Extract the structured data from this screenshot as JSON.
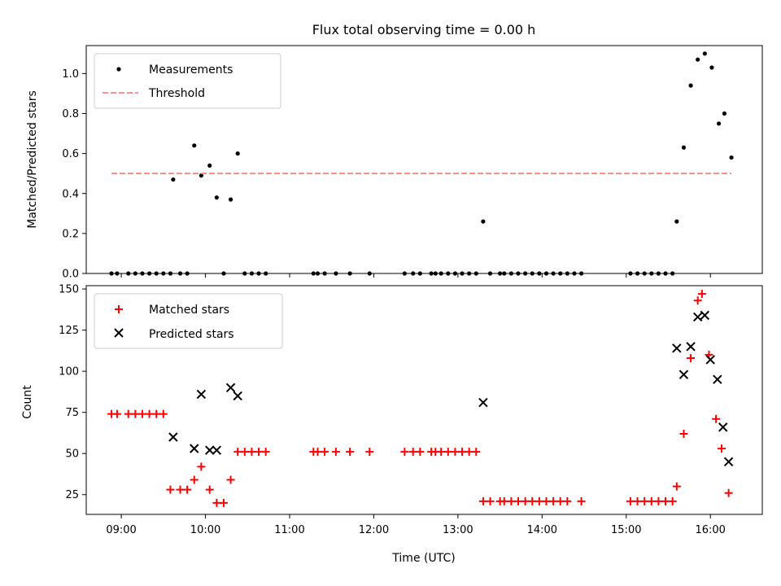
{
  "title": "Flux total observing time = 0.00 h",
  "xlabel": "Time (UTC)",
  "x_ticks": [
    "09:00",
    "10:00",
    "11:00",
    "12:00",
    "13:00",
    "14:00",
    "15:00",
    "16:00"
  ],
  "chart_data": [
    {
      "type": "scatter",
      "ylabel": "Matched/Predicted stars",
      "xlim": [
        "08:35",
        "16:37"
      ],
      "ylim": [
        0,
        1.14
      ],
      "y_ticks": [
        "0.0",
        "0.2",
        "0.4",
        "0.6",
        "0.8",
        "1.0"
      ],
      "legend_position": "top-left",
      "grid": false,
      "series": [
        {
          "name": "Measurements",
          "color": "#000000",
          "marker": "dot",
          "points": [
            [
              "08:53",
              0
            ],
            [
              "08:57",
              0
            ],
            [
              "09:05",
              0
            ],
            [
              "09:10",
              0
            ],
            [
              "09:15",
              0
            ],
            [
              "09:20",
              0
            ],
            [
              "09:25",
              0
            ],
            [
              "09:30",
              0
            ],
            [
              "09:35",
              0
            ],
            [
              "09:37",
              0.47
            ],
            [
              "09:42",
              0
            ],
            [
              "09:47",
              0
            ],
            [
              "09:52",
              0.64
            ],
            [
              "09:57",
              0.49
            ],
            [
              "10:03",
              0.54
            ],
            [
              "10:08",
              0.38
            ],
            [
              "10:13",
              0
            ],
            [
              "10:18",
              0.37
            ],
            [
              "10:23",
              0.6
            ],
            [
              "10:28",
              0
            ],
            [
              "10:33",
              0
            ],
            [
              "10:38",
              0
            ],
            [
              "10:43",
              0
            ],
            [
              "11:17",
              0
            ],
            [
              "11:20",
              0
            ],
            [
              "11:25",
              0
            ],
            [
              "11:33",
              0
            ],
            [
              "11:43",
              0
            ],
            [
              "11:57",
              0
            ],
            [
              "12:22",
              0
            ],
            [
              "12:28",
              0
            ],
            [
              "12:33",
              0
            ],
            [
              "12:41",
              0
            ],
            [
              "12:44",
              0
            ],
            [
              "12:48",
              0
            ],
            [
              "12:53",
              0
            ],
            [
              "12:58",
              0
            ],
            [
              "13:03",
              0
            ],
            [
              "13:08",
              0
            ],
            [
              "13:13",
              0
            ],
            [
              "13:18",
              0.26
            ],
            [
              "13:23",
              0
            ],
            [
              "13:30",
              0
            ],
            [
              "13:33",
              0
            ],
            [
              "13:38",
              0
            ],
            [
              "13:43",
              0
            ],
            [
              "13:48",
              0
            ],
            [
              "13:53",
              0
            ],
            [
              "13:58",
              0
            ],
            [
              "14:03",
              0
            ],
            [
              "14:08",
              0
            ],
            [
              "14:13",
              0
            ],
            [
              "14:18",
              0
            ],
            [
              "14:23",
              0
            ],
            [
              "14:28",
              0
            ],
            [
              "15:03",
              0
            ],
            [
              "15:08",
              0
            ],
            [
              "15:13",
              0
            ],
            [
              "15:18",
              0
            ],
            [
              "15:23",
              0
            ],
            [
              "15:28",
              0
            ],
            [
              "15:33",
              0
            ],
            [
              "15:36",
              0.26
            ],
            [
              "15:41",
              0.63
            ],
            [
              "15:46",
              0.94
            ],
            [
              "15:51",
              1.07
            ],
            [
              "15:56",
              1.1
            ],
            [
              "16:01",
              1.03
            ],
            [
              "16:06",
              0.75
            ],
            [
              "16:10",
              0.8
            ],
            [
              "16:15",
              0.58
            ]
          ]
        },
        {
          "name": "Threshold",
          "color": "#ff7f7f",
          "style": "dashed",
          "points": [
            [
              "08:53",
              0.5
            ],
            [
              "16:15",
              0.5
            ]
          ]
        }
      ]
    },
    {
      "type": "scatter",
      "ylabel": "Count",
      "xlim": [
        "08:35",
        "16:37"
      ],
      "ylim": [
        13,
        152
      ],
      "y_ticks": [
        "25",
        "50",
        "75",
        "100",
        "125",
        "150"
      ],
      "legend_position": "top-left",
      "grid": false,
      "series": [
        {
          "name": "Matched stars",
          "color": "#ff0000",
          "marker": "plus",
          "points": [
            [
              "08:53",
              74
            ],
            [
              "08:57",
              74
            ],
            [
              "09:05",
              74
            ],
            [
              "09:10",
              74
            ],
            [
              "09:15",
              74
            ],
            [
              "09:20",
              74
            ],
            [
              "09:25",
              74
            ],
            [
              "09:30",
              74
            ],
            [
              "09:35",
              28
            ],
            [
              "09:42",
              28
            ],
            [
              "09:47",
              28
            ],
            [
              "09:52",
              34
            ],
            [
              "09:57",
              42
            ],
            [
              "10:03",
              28
            ],
            [
              "10:08",
              20
            ],
            [
              "10:13",
              20
            ],
            [
              "10:18",
              34
            ],
            [
              "10:23",
              51
            ],
            [
              "10:28",
              51
            ],
            [
              "10:33",
              51
            ],
            [
              "10:38",
              51
            ],
            [
              "10:43",
              51
            ],
            [
              "11:17",
              51
            ],
            [
              "11:20",
              51
            ],
            [
              "11:25",
              51
            ],
            [
              "11:33",
              51
            ],
            [
              "11:43",
              51
            ],
            [
              "11:57",
              51
            ],
            [
              "12:22",
              51
            ],
            [
              "12:28",
              51
            ],
            [
              "12:33",
              51
            ],
            [
              "12:41",
              51
            ],
            [
              "12:44",
              51
            ],
            [
              "12:48",
              51
            ],
            [
              "12:53",
              51
            ],
            [
              "12:58",
              51
            ],
            [
              "13:03",
              51
            ],
            [
              "13:08",
              51
            ],
            [
              "13:13",
              51
            ],
            [
              "13:18",
              21
            ],
            [
              "13:23",
              21
            ],
            [
              "13:30",
              21
            ],
            [
              "13:33",
              21
            ],
            [
              "13:38",
              21
            ],
            [
              "13:43",
              21
            ],
            [
              "13:48",
              21
            ],
            [
              "13:53",
              21
            ],
            [
              "13:58",
              21
            ],
            [
              "14:03",
              21
            ],
            [
              "14:08",
              21
            ],
            [
              "14:13",
              21
            ],
            [
              "14:18",
              21
            ],
            [
              "14:28",
              21
            ],
            [
              "15:03",
              21
            ],
            [
              "15:08",
              21
            ],
            [
              "15:13",
              21
            ],
            [
              "15:18",
              21
            ],
            [
              "15:23",
              21
            ],
            [
              "15:28",
              21
            ],
            [
              "15:33",
              21
            ],
            [
              "15:36",
              30
            ],
            [
              "15:41",
              62
            ],
            [
              "15:46",
              108
            ],
            [
              "15:51",
              143
            ],
            [
              "15:54",
              147
            ],
            [
              "15:59",
              110
            ],
            [
              "16:04",
              71
            ],
            [
              "16:08",
              53
            ],
            [
              "16:13",
              26
            ]
          ]
        },
        {
          "name": "Predicted stars",
          "color": "#000000",
          "marker": "x",
          "points": [
            [
              "09:37",
              60
            ],
            [
              "09:52",
              53
            ],
            [
              "09:57",
              86
            ],
            [
              "10:03",
              52
            ],
            [
              "10:08",
              52
            ],
            [
              "10:18",
              90
            ],
            [
              "10:23",
              85
            ],
            [
              "13:18",
              81
            ],
            [
              "15:36",
              114
            ],
            [
              "15:41",
              98
            ],
            [
              "15:46",
              115
            ],
            [
              "15:51",
              133
            ],
            [
              "15:56",
              134
            ],
            [
              "16:00",
              107
            ],
            [
              "16:05",
              95
            ],
            [
              "16:09",
              66
            ],
            [
              "16:13",
              45
            ]
          ]
        }
      ]
    }
  ]
}
